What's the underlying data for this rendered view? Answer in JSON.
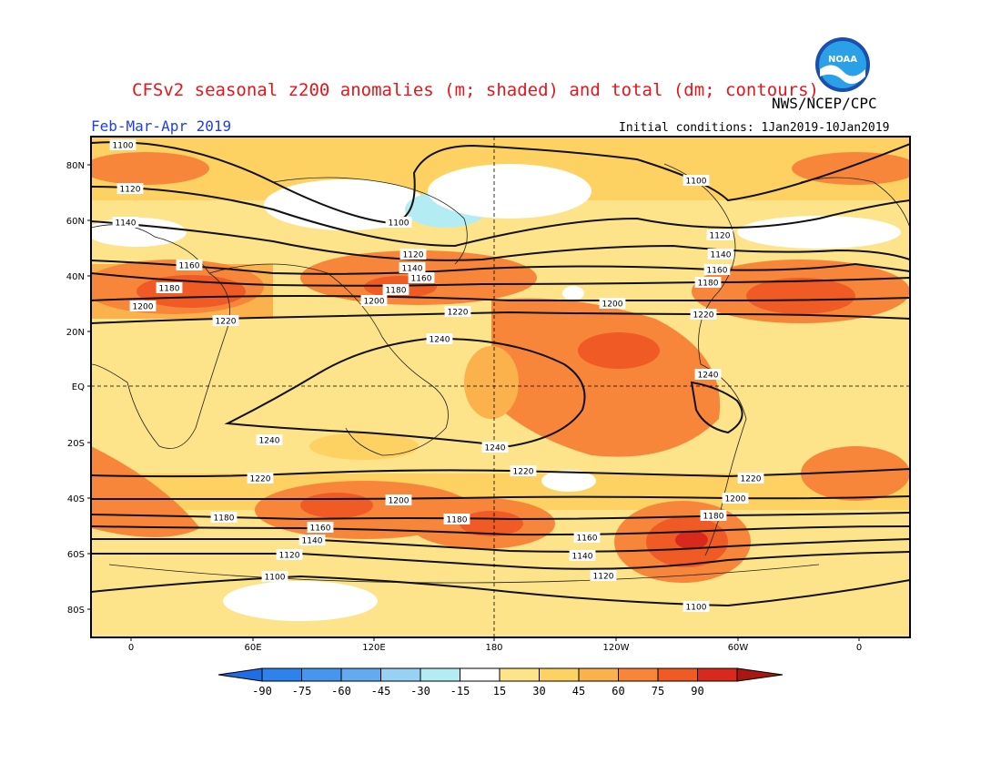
{
  "header": {
    "title": "CFSv2 seasonal z200 anomalies (m; shaded) and total (dm; contours)",
    "agency": "NWS/NCEP/CPC",
    "season": "Feb-Mar-Apr 2019",
    "initial_conditions": "Initial conditions: 1Jan2019-10Jan2019",
    "logo_text": "NOAA"
  },
  "map": {
    "lat_labels": [
      "80N",
      "60N",
      "40N",
      "20N",
      "EQ",
      "20S",
      "40S",
      "60S",
      "80S"
    ],
    "lon_labels": [
      "0",
      "60E",
      "120E",
      "180",
      "120W",
      "60W",
      "0"
    ],
    "contour_labels": [
      "1100",
      "1120",
      "1140",
      "1160",
      "1180",
      "1200",
      "1220",
      "1240"
    ],
    "colors": {
      "light_yellow": "#fde38a",
      "yellow": "#fdd263",
      "light_orange": "#fbb24c",
      "orange": "#f8863a",
      "red_orange": "#f05a24",
      "red": "#d9281c",
      "white": "#ffffff",
      "light_cyan": "#b4ecf4"
    }
  },
  "colorbar": {
    "ticks": [
      "-90",
      "-75",
      "-60",
      "-45",
      "-30",
      "-15",
      "15",
      "30",
      "45",
      "60",
      "75",
      "90"
    ],
    "colors": [
      "#1e6ee8",
      "#2e82ec",
      "#4696ee",
      "#64aaf0",
      "#96d2f4",
      "#b4ecf4",
      "#ffffff",
      "#fde38a",
      "#fdd263",
      "#fbb24c",
      "#f8863a",
      "#f05a24",
      "#d9281c",
      "#a8180f"
    ]
  }
}
